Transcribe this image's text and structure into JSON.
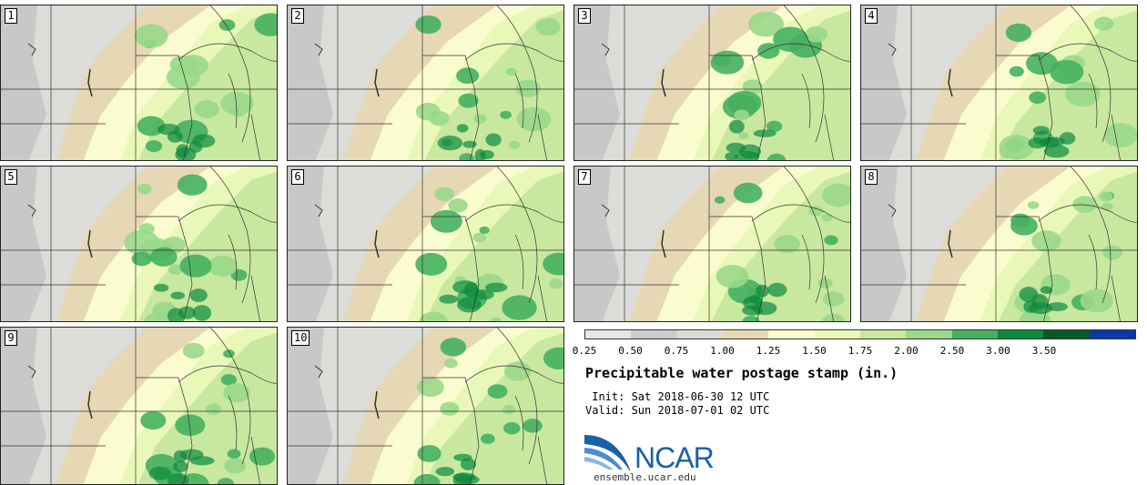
{
  "stamps": [
    {
      "label": "1"
    },
    {
      "label": "2"
    },
    {
      "label": "3"
    },
    {
      "label": "4"
    },
    {
      "label": "5"
    },
    {
      "label": "6"
    },
    {
      "label": "7"
    },
    {
      "label": "8"
    },
    {
      "label": "9"
    },
    {
      "label": "10"
    }
  ],
  "legend": {
    "title": "Precipitable water postage stamp (in.)",
    "ticks": [
      "0.25",
      "0.50",
      "0.75",
      "1.00",
      "1.25",
      "1.50",
      "1.75",
      "2.00",
      "2.50",
      "3.00",
      "3.50"
    ],
    "colors": [
      "#e6e6e6",
      "#cccccc",
      "#dcdcd4",
      "#e6d8b4",
      "#fbfbd0",
      "#e9f8b8",
      "#c8e8a0",
      "#9ad88a",
      "#46b060",
      "#0c8a3c",
      "#0a5a28",
      "#0a3aa8"
    ]
  },
  "info": {
    "init_line": " Init: Sat 2018-06-30 12 UTC",
    "valid_line": "Valid: Sun 2018-07-01 02 UTC"
  },
  "logo": {
    "name": "NCAR",
    "url": "ensemble.ucar.edu"
  },
  "map_colors": {
    "gray_dark": "#c8c8c8",
    "gray_light": "#dcdcd8",
    "tan": "#e6d8b4",
    "cream": "#fbfbd0",
    "lime": "#e9f8b8",
    "green_light": "#c8e8a0",
    "green_mid": "#9ad88a",
    "green_dark": "#46b060",
    "green_deep": "#0c8a3c"
  }
}
